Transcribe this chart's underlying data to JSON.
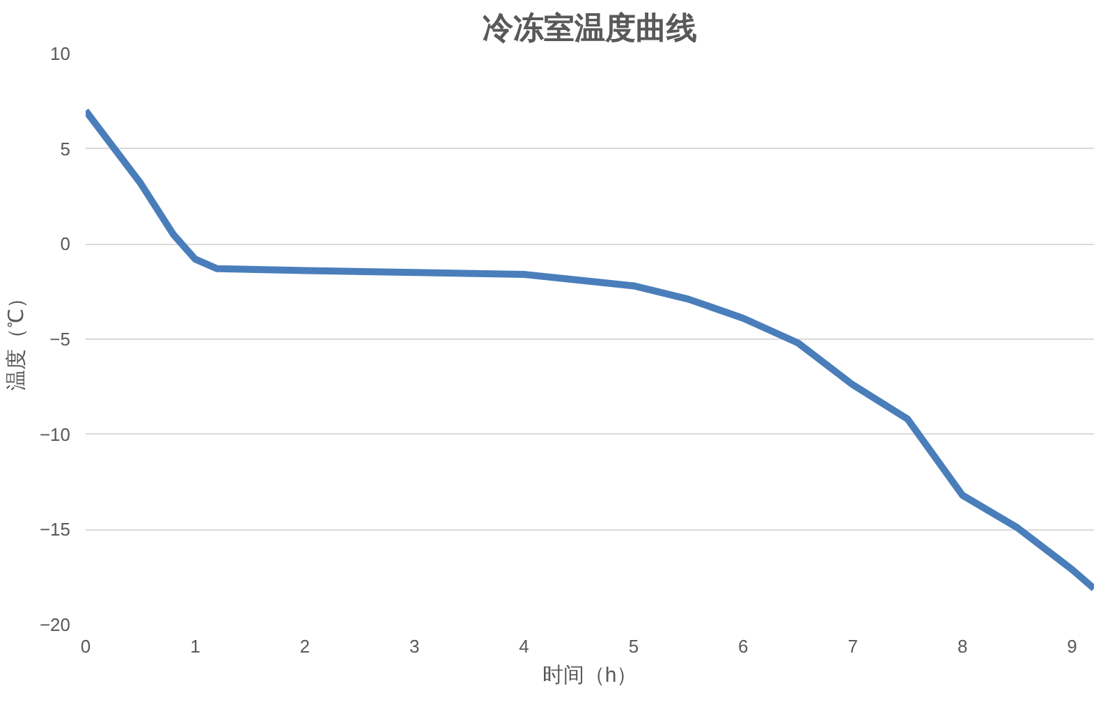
{
  "chart_data": {
    "type": "line",
    "title": "冷冻室温度曲线",
    "xlabel": "时间（h）",
    "ylabel": "温度（℃）",
    "x": [
      0,
      0.5,
      0.8,
      1,
      1.2,
      2,
      3,
      4,
      5,
      5.5,
      6,
      6.5,
      7,
      7.5,
      8,
      8.5,
      9,
      9.2
    ],
    "series": [
      {
        "color": "#4a7ebb",
        "values": [
          7,
          3.2,
          0.5,
          -0.8,
          -1.3,
          -1.4,
          -1.5,
          -1.6,
          -2.2,
          -2.9,
          -3.9,
          -5.2,
          -7.4,
          -9.2,
          -13.2,
          -14.9,
          -17.1,
          -18.1
        ]
      }
    ],
    "xlim": [
      0,
      9.2
    ],
    "ylim": [
      -20,
      10
    ],
    "xticks": [
      0,
      1,
      2,
      3,
      4,
      5,
      6,
      7,
      8,
      9
    ],
    "yticks": [
      -20,
      -15,
      -10,
      -5,
      0,
      5,
      10
    ],
    "grid": "y",
    "marker": "none",
    "line_style": "solid"
  }
}
